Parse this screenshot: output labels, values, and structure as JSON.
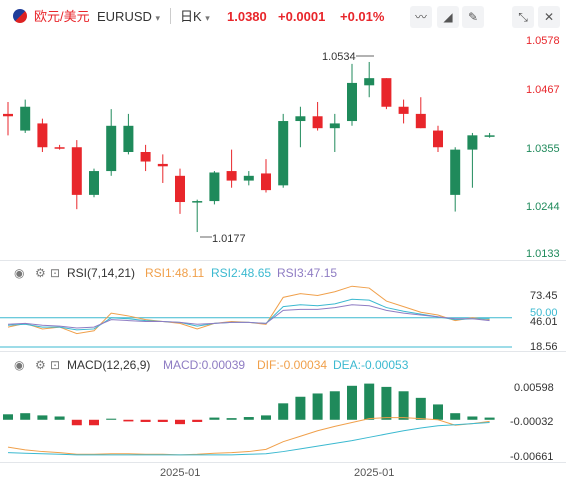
{
  "header": {
    "pair_name": "欧元/美元",
    "symbol": "EURUSD",
    "timeframe": "日K",
    "price": "1.0380",
    "change": "+0.0001",
    "change_pct": "+0.01%"
  },
  "icons": {
    "flag": "eu-us-flag-icon",
    "toolbar": [
      "line-chart-icon",
      "draw-icon",
      "pencil-icon",
      "collapse-icon",
      "close-icon"
    ]
  },
  "main_chart": {
    "price_ticks": [
      "1.0578",
      "1.0467",
      "1.0355",
      "1.0244",
      "1.0133"
    ],
    "high_label": "1.0534",
    "low_label": "1.0177"
  },
  "rsi": {
    "title": "RSI(7,14,21)",
    "rsi1": "RSI1:48.11",
    "rsi2": "RSI2:48.65",
    "rsi3": "RSI3:47.15",
    "ticks": [
      "73.45",
      "50.00",
      "46.01",
      "18.56"
    ]
  },
  "macd": {
    "title": "MACD(12,26,9)",
    "macd": "MACD:0.00039",
    "dif": "DIF:-0.00034",
    "dea": "DEA:-0.00053",
    "ticks": [
      "0.00598",
      "-0.00032",
      "-0.00661"
    ]
  },
  "x_axis": {
    "labels": [
      "2025-01",
      "2025-01"
    ]
  },
  "colors": {
    "up": "#1f8a5b",
    "down": "#e8262b",
    "rsi1": "#f0a04b",
    "rsi2": "#3bb9d0",
    "rsi3": "#8e7cc3",
    "dif": "#f0a04b",
    "dea": "#3bb9d0",
    "price_axis": "#e8262b",
    "macd_label": "#8e7cc3"
  },
  "candles": [
    {
      "o": 1.0425,
      "h": 1.045,
      "l": 1.038,
      "c": 1.042
    },
    {
      "o": 1.039,
      "h": 1.0455,
      "l": 1.0385,
      "c": 1.044
    },
    {
      "o": 1.0405,
      "h": 1.0415,
      "l": 1.0345,
      "c": 1.0355
    },
    {
      "o": 1.0355,
      "h": 1.036,
      "l": 1.035,
      "c": 1.0352
    },
    {
      "o": 1.0355,
      "h": 1.037,
      "l": 1.0225,
      "c": 1.0255
    },
    {
      "o": 1.0255,
      "h": 1.031,
      "l": 1.025,
      "c": 1.0305
    },
    {
      "o": 1.0305,
      "h": 1.0435,
      "l": 1.0295,
      "c": 1.04
    },
    {
      "o": 1.0345,
      "h": 1.0425,
      "l": 1.034,
      "c": 1.04
    },
    {
      "o": 1.0345,
      "h": 1.036,
      "l": 1.0305,
      "c": 1.0325
    },
    {
      "o": 1.032,
      "h": 1.034,
      "l": 1.028,
      "c": 1.0315
    },
    {
      "o": 1.0295,
      "h": 1.031,
      "l": 1.0215,
      "c": 1.024
    },
    {
      "o": 1.024,
      "h": 1.0245,
      "l": 1.0177,
      "c": 1.0242
    },
    {
      "o": 1.0242,
      "h": 1.0305,
      "l": 1.0235,
      "c": 1.0302
    },
    {
      "o": 1.0305,
      "h": 1.035,
      "l": 1.027,
      "c": 1.0285
    },
    {
      "o": 1.0285,
      "h": 1.0305,
      "l": 1.0275,
      "c": 1.0295
    },
    {
      "o": 1.03,
      "h": 1.033,
      "l": 1.026,
      "c": 1.0265
    },
    {
      "o": 1.0275,
      "h": 1.0425,
      "l": 1.027,
      "c": 1.041
    },
    {
      "o": 1.041,
      "h": 1.044,
      "l": 1.0355,
      "c": 1.042
    },
    {
      "o": 1.042,
      "h": 1.045,
      "l": 1.039,
      "c": 1.0395
    },
    {
      "o": 1.0395,
      "h": 1.0425,
      "l": 1.0345,
      "c": 1.0405
    },
    {
      "o": 1.041,
      "h": 1.053,
      "l": 1.04,
      "c": 1.049
    },
    {
      "o": 1.0485,
      "h": 1.0534,
      "l": 1.046,
      "c": 1.05
    },
    {
      "o": 1.05,
      "h": 1.05,
      "l": 1.0435,
      "c": 1.044
    },
    {
      "o": 1.044,
      "h": 1.0455,
      "l": 1.0405,
      "c": 1.0425
    },
    {
      "o": 1.0425,
      "h": 1.046,
      "l": 1.0395,
      "c": 1.0395
    },
    {
      "o": 1.039,
      "h": 1.04,
      "l": 1.0345,
      "c": 1.0355
    },
    {
      "o": 1.0255,
      "h": 1.0355,
      "l": 1.022,
      "c": 1.035
    },
    {
      "o": 1.035,
      "h": 1.0385,
      "l": 1.027,
      "c": 1.038
    },
    {
      "o": 1.038,
      "h": 1.0385,
      "l": 1.0375,
      "c": 1.038
    }
  ],
  "macd_hist": [
    0.001,
    0.0012,
    0.0008,
    0.0006,
    -0.001,
    -0.001,
    0.0002,
    -0.0003,
    -0.0004,
    -0.0004,
    -0.0008,
    -0.0004,
    0.0004,
    0.0003,
    0.0005,
    0.0008,
    0.003,
    0.0042,
    0.0048,
    0.0052,
    0.0062,
    0.0066,
    0.006,
    0.0052,
    0.004,
    0.0028,
    0.0012,
    0.0006,
    0.0004
  ],
  "dif_line": [
    -0.005,
    -0.0055,
    -0.0058,
    -0.006,
    -0.0063,
    -0.0063,
    -0.0062,
    -0.0062,
    -0.0063,
    -0.0063,
    -0.0064,
    -0.0063,
    -0.0061,
    -0.006,
    -0.0058,
    -0.0054,
    -0.004,
    -0.003,
    -0.002,
    -0.0012,
    -0.0005,
    0.0002,
    0.0004,
    0.0004,
    0.0002,
    0.0,
    -0.001,
    -0.0007,
    -0.0003
  ],
  "dea_line": [
    -0.006,
    -0.0061,
    -0.0062,
    -0.0063,
    -0.0064,
    -0.0064,
    -0.0064,
    -0.0064,
    -0.0064,
    -0.0064,
    -0.0064,
    -0.0064,
    -0.0064,
    -0.0064,
    -0.0063,
    -0.0062,
    -0.0058,
    -0.0053,
    -0.0048,
    -0.0043,
    -0.0038,
    -0.0032,
    -0.0026,
    -0.002,
    -0.0015,
    -0.0011,
    -0.0009,
    -0.0007,
    -0.0005
  ],
  "rsi_lines": {
    "rsi1": [
      40,
      44,
      38,
      40,
      33,
      36,
      55,
      52,
      48,
      46,
      44,
      38,
      44,
      46,
      45,
      43,
      72,
      76,
      74,
      78,
      84,
      82,
      68,
      62,
      56,
      53,
      47,
      50,
      48
    ],
    "rsi2": [
      42,
      43,
      40,
      40,
      37,
      38,
      50,
      49,
      47,
      46,
      45,
      41,
      44,
      45,
      45,
      44,
      62,
      64,
      63,
      65,
      70,
      69,
      61,
      57,
      54,
      51,
      48,
      49,
      49
    ],
    "rsi3": [
      43,
      44,
      42,
      41,
      39,
      40,
      48,
      47,
      46,
      46,
      45,
      43,
      44,
      45,
      45,
      44,
      58,
      59,
      59,
      61,
      64,
      63,
      58,
      55,
      53,
      51,
      49,
      49,
      47
    ]
  }
}
